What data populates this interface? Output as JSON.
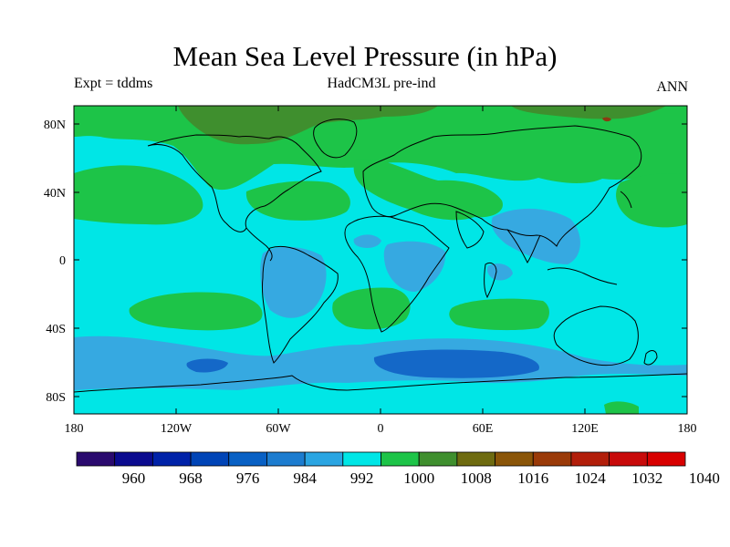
{
  "title": "Mean Sea Level Pressure (in hPa)",
  "subtitle_left": "Expt = tddms",
  "subtitle_center": "HadCM3L pre-ind",
  "subtitle_right": "ANN",
  "latitude_ticks": [
    "80N",
    "40N",
    "0",
    "40S",
    "80S"
  ],
  "longitude_ticks": [
    "180",
    "120W",
    "60W",
    "0",
    "60E",
    "120E",
    "180"
  ],
  "colors": {
    "ocean_base": "#00e6e6",
    "low_mid": "#36a9e1",
    "low_deep": "#1468c8",
    "high": "#1dc448",
    "high_strong": "#3f8f2e",
    "high_peak": "#8b3a12",
    "coast": "#000000"
  },
  "chart_data": {
    "type": "heatmap",
    "title": "Mean Sea Level Pressure (in hPa)",
    "variable": "Mean Sea Level Pressure",
    "units": "hPa",
    "experiment": "tddms",
    "model": "HadCM3L pre-ind",
    "season": "ANN",
    "x_range": [
      -180,
      180
    ],
    "y_range": [
      -90,
      90
    ],
    "colorbar": {
      "labels": [
        "960",
        "968",
        "976",
        "984",
        "992",
        "1000",
        "1008",
        "1016",
        "1024",
        "1032",
        "1040"
      ],
      "colors": [
        "#2a0a6e",
        "#0b0b8f",
        "#0022a8",
        "#0044b6",
        "#0860c4",
        "#1c7ccf",
        "#2aa5e2",
        "#00e6e6",
        "#1dc448",
        "#3f8f2e",
        "#6e6b10",
        "#8a5508",
        "#9a3a08",
        "#b21e0a",
        "#c80a0a",
        "#d80000"
      ]
    }
  }
}
